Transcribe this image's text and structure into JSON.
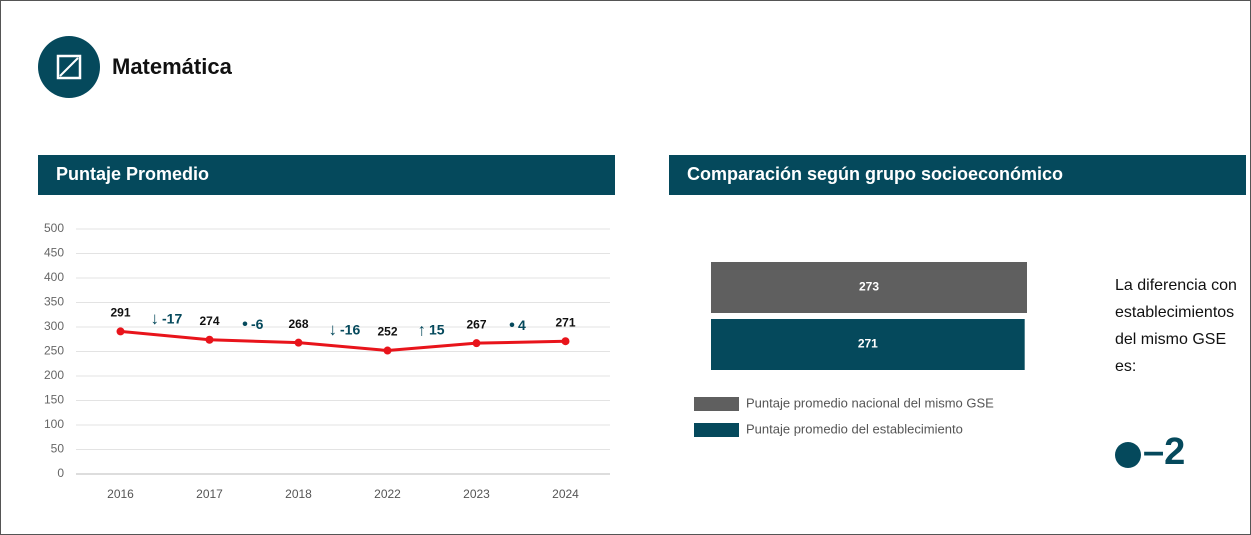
{
  "header": {
    "title": "Matemática"
  },
  "chart_data": [
    {
      "type": "line",
      "title": "Puntaje Promedio",
      "categories": [
        "2016",
        "2017",
        "2018",
        "2022",
        "2023",
        "2024"
      ],
      "values": [
        291,
        274,
        268,
        252,
        267,
        271
      ],
      "color": "#e8141b",
      "ylim": [
        0,
        500
      ],
      "yticks": [
        0,
        50,
        100,
        150,
        200,
        250,
        300,
        350,
        400,
        450,
        500
      ],
      "grid": true,
      "changes": [
        -17,
        -6,
        -16,
        15,
        4
      ],
      "change_symbols": [
        "↓",
        "•",
        "↓",
        "↑",
        "•"
      ]
    },
    {
      "type": "hbar",
      "title": "Comparación según grupo socioeconómico",
      "series": [
        {
          "name": "Puntaje promedio nacional del mismo GSE",
          "color": "#5f5f5f",
          "values": [
            273
          ]
        },
        {
          "name": "Puntaje promedio del establecimiento",
          "color": "#05495c",
          "values": [
            271
          ]
        }
      ],
      "note": "La diferencia con establecimientos del mismo GSE es:",
      "difference": {
        "value": -2,
        "label": "–2"
      }
    }
  ]
}
